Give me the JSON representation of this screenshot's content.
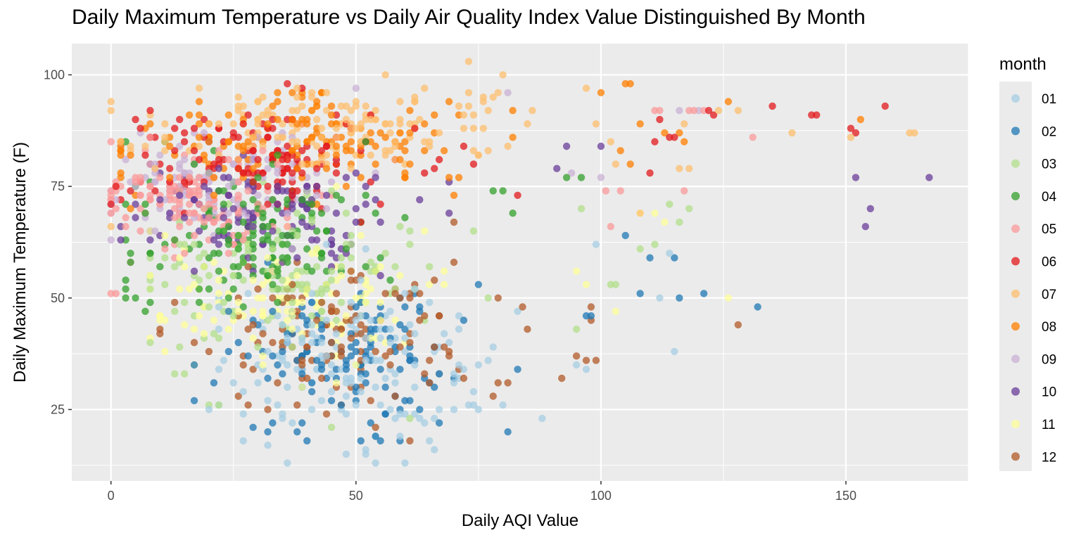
{
  "chart_data": {
    "type": "scatter",
    "title": "Daily Maximum Temperature vs Daily Air Quality Index Value Distinguished By Month",
    "xlabel": "Daily AQI Value",
    "ylabel": "Daily Maximum Temperature (F)",
    "xlim": [
      -8,
      175
    ],
    "ylim": [
      9,
      107
    ],
    "x_ticks": [
      0,
      50,
      100,
      150
    ],
    "y_ticks": [
      25,
      50,
      75,
      100
    ],
    "grid": true,
    "legend": {
      "title": "month",
      "placement": "right"
    },
    "point_alpha": 0.75,
    "series": [
      {
        "name": "01",
        "color": "#a6cee3",
        "sample_count": 150,
        "cloud": {
          "cx": 47,
          "cy": 35,
          "sx": 14,
          "sy": 9,
          "xmin": 22,
          "xmax": 97,
          "ymin": 13,
          "ymax": 62
        },
        "points": [
          [
            36,
            13
          ],
          [
            32,
            17
          ],
          [
            48,
            15
          ],
          [
            52,
            15
          ],
          [
            66,
            16
          ],
          [
            73,
            26
          ],
          [
            74,
            26
          ],
          [
            115,
            38
          ],
          [
            112,
            50
          ],
          [
            97,
            34
          ],
          [
            99,
            62
          ],
          [
            114,
            60
          ],
          [
            20,
            25
          ],
          [
            95,
            35
          ]
        ]
      },
      {
        "name": "02",
        "color": "#1f78b4",
        "sample_count": 130,
        "cloud": {
          "cx": 50,
          "cy": 38,
          "sx": 13,
          "sy": 8,
          "xmin": 17,
          "xmax": 100,
          "ymin": 18,
          "ymax": 66
        },
        "points": [
          [
            132,
            48
          ],
          [
            121,
            51
          ],
          [
            116,
            50
          ],
          [
            108,
            51
          ],
          [
            110,
            59
          ],
          [
            115,
            59
          ],
          [
            105,
            64
          ],
          [
            55,
            18
          ],
          [
            67,
            22
          ],
          [
            29,
            21
          ],
          [
            33,
            22
          ],
          [
            97,
            46
          ],
          [
            98,
            46
          ],
          [
            24,
            47
          ]
        ]
      },
      {
        "name": "03",
        "color": "#b2df8a",
        "sample_count": 130,
        "cloud": {
          "cx": 35,
          "cy": 54,
          "sx": 14,
          "sy": 8,
          "xmin": 8,
          "xmax": 100,
          "ymin": 26,
          "ymax": 76
        },
        "points": [
          [
            118,
            70
          ],
          [
            116,
            67
          ],
          [
            114,
            71
          ],
          [
            103,
            53
          ],
          [
            108,
            61
          ],
          [
            111,
            62
          ],
          [
            96,
            70
          ],
          [
            95,
            43
          ],
          [
            13,
            33
          ],
          [
            15,
            33
          ],
          [
            20,
            26
          ],
          [
            22,
            26
          ],
          [
            45,
            21
          ],
          [
            61,
            23
          ],
          [
            102,
            53
          ]
        ]
      },
      {
        "name": "04",
        "color": "#33a02c",
        "sample_count": 150,
        "cloud": {
          "cx": 30,
          "cy": 63,
          "sx": 12,
          "sy": 7,
          "xmin": 3,
          "xmax": 95,
          "ymin": 42,
          "ymax": 85
        },
        "points": [
          [
            3,
            54
          ],
          [
            5,
            50
          ],
          [
            4,
            58
          ],
          [
            80,
            74
          ],
          [
            78,
            74
          ],
          [
            93,
            77
          ],
          [
            96,
            77
          ],
          [
            82,
            69
          ],
          [
            52,
            85
          ],
          [
            7,
            47
          ]
        ]
      },
      {
        "name": "05",
        "color": "#fb9a99",
        "sample_count": 130,
        "cloud": {
          "cx": 18,
          "cy": 72,
          "sx": 11,
          "sy": 6,
          "xmin": 0,
          "xmax": 90,
          "ymin": 51,
          "ymax": 90
        },
        "points": [
          [
            0,
            51
          ],
          [
            1,
            51
          ],
          [
            0,
            73
          ],
          [
            3,
            66
          ],
          [
            131,
            86
          ],
          [
            104,
            74
          ],
          [
            101,
            74
          ],
          [
            117,
            74
          ],
          [
            102,
            66
          ],
          [
            112,
            92
          ],
          [
            111,
            92
          ],
          [
            118,
            92
          ],
          [
            119,
            92
          ],
          [
            121,
            92
          ]
        ]
      },
      {
        "name": "06",
        "color": "#e31a1c",
        "sample_count": 140,
        "cloud": {
          "cx": 33,
          "cy": 82,
          "sx": 16,
          "sy": 6,
          "xmin": 0,
          "xmax": 100,
          "ymin": 62,
          "ymax": 98
        },
        "points": [
          [
            0,
            71
          ],
          [
            1,
            75
          ],
          [
            135,
            93
          ],
          [
            143,
            91
          ],
          [
            144,
            91
          ],
          [
            158,
            93
          ],
          [
            151,
            88
          ],
          [
            152,
            87
          ],
          [
            123,
            91
          ],
          [
            122,
            92
          ],
          [
            115,
            86
          ],
          [
            114,
            86
          ],
          [
            110,
            78
          ],
          [
            111,
            85
          ],
          [
            112,
            90
          ],
          [
            36,
            98
          ],
          [
            83,
            73
          ]
        ]
      },
      {
        "name": "07",
        "color": "#fdbf6f",
        "sample_count": 160,
        "cloud": {
          "cx": 45,
          "cy": 88,
          "sx": 18,
          "sy": 4.5,
          "xmin": 0,
          "xmax": 104,
          "ymin": 75,
          "ymax": 97
        },
        "points": [
          [
            0,
            66
          ],
          [
            2,
            85
          ],
          [
            73,
            103
          ],
          [
            56,
            100
          ],
          [
            80,
            100
          ],
          [
            139,
            87
          ],
          [
            164,
            87
          ],
          [
            163,
            87
          ],
          [
            151,
            86
          ],
          [
            128,
            92
          ],
          [
            124,
            92
          ],
          [
            117,
            89
          ],
          [
            116,
            79
          ],
          [
            118,
            79
          ],
          [
            108,
            69
          ],
          [
            103,
            80
          ],
          [
            102,
            85
          ],
          [
            97,
            97
          ]
        ]
      },
      {
        "name": "08",
        "color": "#ff7f00",
        "sample_count": 140,
        "cloud": {
          "cx": 38,
          "cy": 85,
          "sx": 17,
          "sy": 5,
          "xmin": 2,
          "xmax": 100,
          "ymin": 70,
          "ymax": 96
        },
        "points": [
          [
            2,
            85
          ],
          [
            106,
            98
          ],
          [
            105,
            98
          ],
          [
            108,
            89
          ],
          [
            117,
            85
          ],
          [
            153,
            90
          ],
          [
            126,
            94
          ],
          [
            116,
            87
          ],
          [
            113,
            87
          ],
          [
            100,
            96
          ],
          [
            106,
            80
          ],
          [
            104,
            83
          ],
          [
            4,
            70
          ]
        ]
      },
      {
        "name": "09",
        "color": "#cab2d6",
        "sample_count": 100,
        "cloud": {
          "cx": 22,
          "cy": 76,
          "sx": 12,
          "sy": 6,
          "xmin": 0,
          "xmax": 100,
          "ymin": 58,
          "ymax": 97
        },
        "points": [
          [
            0,
            63
          ],
          [
            1,
            72
          ],
          [
            50,
            97
          ],
          [
            100,
            77
          ],
          [
            94,
            78
          ],
          [
            81,
            96
          ],
          [
            116,
            92
          ],
          [
            120,
            92
          ]
        ]
      },
      {
        "name": "10",
        "color": "#6a3d9a",
        "sample_count": 130,
        "cloud": {
          "cx": 30,
          "cy": 69,
          "sx": 13,
          "sy": 6,
          "xmin": 2,
          "xmax": 98,
          "ymin": 55,
          "ymax": 88
        },
        "points": [
          [
            152,
            77
          ],
          [
            167,
            77
          ],
          [
            155,
            70
          ],
          [
            154,
            66
          ],
          [
            2,
            63
          ],
          [
            100,
            84
          ],
          [
            93,
            84
          ],
          [
            91,
            79
          ]
        ]
      },
      {
        "name": "11",
        "color": "#ffff99",
        "sample_count": 130,
        "cloud": {
          "cx": 35,
          "cy": 50,
          "sx": 15,
          "sy": 8,
          "xmin": 8,
          "xmax": 103,
          "ymin": 27,
          "ymax": 75
        },
        "points": [
          [
            126,
            50
          ],
          [
            103,
            47
          ],
          [
            108,
            69
          ],
          [
            111,
            69
          ],
          [
            113,
            67
          ],
          [
            95,
            56
          ],
          [
            97,
            53
          ]
        ]
      },
      {
        "name": "12",
        "color": "#b15928",
        "sample_count": 130,
        "cloud": {
          "cx": 47,
          "cy": 42,
          "sx": 15,
          "sy": 8,
          "xmin": 10,
          "xmax": 100,
          "ymin": 18,
          "ymax": 65
        },
        "points": [
          [
            128,
            44
          ],
          [
            92,
            32
          ],
          [
            99,
            36
          ],
          [
            97,
            36
          ],
          [
            79,
            31
          ],
          [
            81,
            31
          ],
          [
            95,
            37
          ],
          [
            98,
            45
          ],
          [
            10,
            42
          ],
          [
            70,
            67
          ]
        ]
      }
    ]
  }
}
